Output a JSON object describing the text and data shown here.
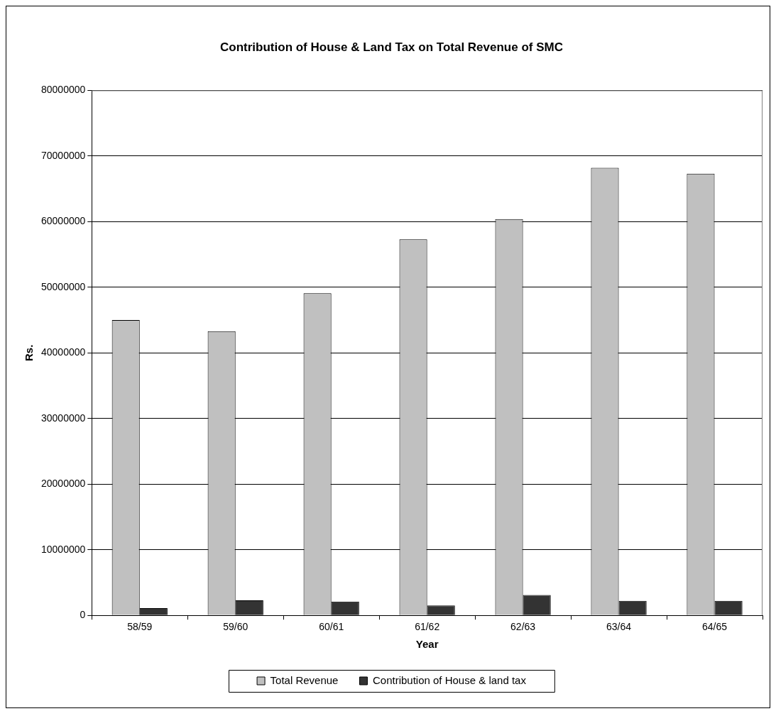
{
  "chart_data": {
    "type": "bar",
    "title": "Contribution of House & Land Tax on Total Revenue of SMC",
    "xlabel": "Year",
    "ylabel": "Rs.",
    "categories": [
      "58/59",
      "59/60",
      "60/61",
      "61/62",
      "62/63",
      "63/64",
      "64/65"
    ],
    "series": [
      {
        "name": "Total Revenue",
        "color": "#c0c0c0",
        "values": [
          45000000,
          43300000,
          49100000,
          57300000,
          60400000,
          68200000,
          67300000
        ]
      },
      {
        "name": "Contribution of House & land tax",
        "color": "#333333",
        "values": [
          1100000,
          2300000,
          2100000,
          1500000,
          3100000,
          2200000,
          2200000
        ]
      }
    ],
    "ylim": [
      0,
      80000000
    ],
    "yticks": [
      0,
      10000000,
      20000000,
      30000000,
      40000000,
      50000000,
      60000000,
      70000000,
      80000000
    ],
    "grid": "y",
    "legend": "bottom"
  }
}
